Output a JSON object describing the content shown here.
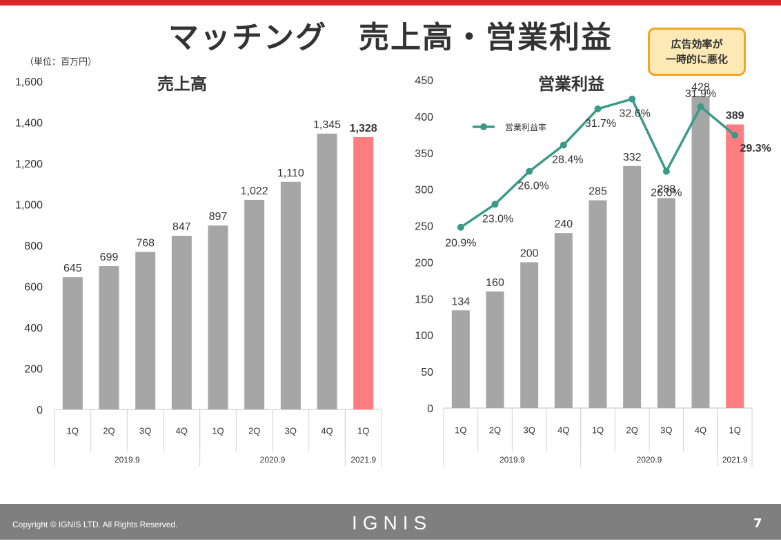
{
  "page": {
    "title": "マッチング　売上高・営業利益",
    "unit_note": "（単位：百万円）",
    "callout_line1": "広告効率が",
    "callout_line2": "一時的に悪化",
    "copyright": "Copyright ©  IGNIS LTD. All Rights Reserved.",
    "logo": "IGNIS",
    "page_number": "7",
    "colors": {
      "bar": "#a6a6a6",
      "highlight": "#ff7c80",
      "line": "#3a9a88",
      "accent": "#d7262c"
    }
  },
  "chart_data": [
    {
      "type": "bar",
      "title": "売上高",
      "categories": [
        "1Q",
        "2Q",
        "3Q",
        "4Q",
        "1Q",
        "2Q",
        "3Q",
        "4Q",
        "1Q"
      ],
      "groups": [
        {
          "label": "2019.9",
          "count": 4
        },
        {
          "label": "2020.9",
          "count": 4
        },
        {
          "label": "2021.9",
          "count": 1
        }
      ],
      "values": [
        645,
        699,
        768,
        847,
        897,
        1022,
        1110,
        1345,
        1328
      ],
      "value_labels": [
        "645",
        "699",
        "768",
        "847",
        "897",
        "1,022",
        "1,110",
        "1,345",
        "1,328"
      ],
      "highlight_index": 8,
      "ylim": [
        0,
        1600
      ],
      "yticks": [
        0,
        200,
        400,
        600,
        800,
        1000,
        1200,
        1400,
        1600
      ],
      "ytick_labels": [
        "0",
        "200",
        "400",
        "600",
        "800",
        "1,000",
        "1,200",
        "1,400",
        "1,600"
      ]
    },
    {
      "type": "bar",
      "title": "営業利益",
      "categories": [
        "1Q",
        "2Q",
        "3Q",
        "4Q",
        "1Q",
        "2Q",
        "3Q",
        "4Q",
        "1Q"
      ],
      "groups": [
        {
          "label": "2019.9",
          "count": 4
        },
        {
          "label": "2020.9",
          "count": 4
        },
        {
          "label": "2021.9",
          "count": 1
        }
      ],
      "values": [
        134,
        160,
        200,
        240,
        285,
        332,
        288,
        428,
        389
      ],
      "value_labels": [
        "134",
        "160",
        "200",
        "240",
        "285",
        "332",
        "288",
        "428",
        "389"
      ],
      "highlight_index": 8,
      "ylim": [
        0,
        450
      ],
      "yticks": [
        0,
        50,
        100,
        150,
        200,
        250,
        300,
        350,
        400,
        450
      ],
      "ytick_labels": [
        "0",
        "50",
        "100",
        "150",
        "200",
        "250",
        "300",
        "350",
        "400",
        "450"
      ],
      "line_series": {
        "name": "営業利益率",
        "values": [
          20.9,
          23.0,
          26.0,
          28.4,
          31.7,
          32.6,
          26.0,
          31.9,
          29.3
        ],
        "labels": [
          "20.9%",
          "23.0%",
          "26.0%",
          "28.4%",
          "31.7%",
          "32.6%",
          "26.0%",
          "31.9%",
          "29.3%"
        ]
      }
    }
  ]
}
